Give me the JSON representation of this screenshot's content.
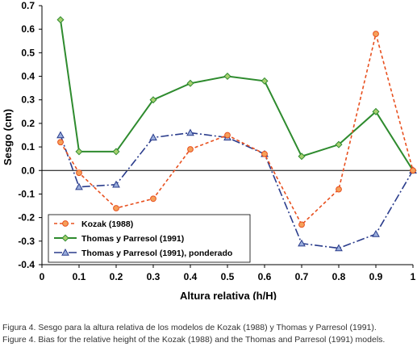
{
  "chart_data": {
    "type": "line",
    "title": "",
    "xlabel": "Altura relativa (h/H)",
    "ylabel": "Sesgo (cm)",
    "xlim": [
      0,
      1
    ],
    "ylim": [
      -0.4,
      0.7
    ],
    "xticks": [
      "0",
      "0.1",
      "0.2",
      "0.3",
      "0.4",
      "0.5",
      "0.6",
      "0.7",
      "0.8",
      "0.9",
      "1"
    ],
    "yticks": [
      "0.7",
      "0.6",
      "0.5",
      "0.4",
      "0.3",
      "0.2",
      "0.1",
      "0.0",
      "-0.1",
      "-0.2",
      "-0.3",
      "-0.4"
    ],
    "grid": false,
    "legend_position": "bottom-left",
    "x": [
      0.05,
      0.1,
      0.2,
      0.3,
      0.4,
      0.5,
      0.6,
      0.7,
      0.8,
      0.9,
      1.0
    ],
    "series": [
      {
        "name": "Kozak (1988)",
        "color": "#e8501f",
        "marker_color": "#f5a05a",
        "line_style": "dashed",
        "marker": "circle",
        "values": [
          0.12,
          -0.01,
          -0.16,
          -0.12,
          0.09,
          0.15,
          0.07,
          -0.23,
          -0.08,
          0.58,
          0.0
        ]
      },
      {
        "name": "Thomas y Parresol (1991)",
        "color": "#2e8b2e",
        "marker_color": "#a8d070",
        "line_style": "solid",
        "marker": "diamond",
        "values": [
          0.64,
          0.08,
          0.08,
          0.3,
          0.37,
          0.4,
          0.38,
          0.06,
          0.11,
          0.25,
          0.0
        ]
      },
      {
        "name": "Thomas y Parresol (1991), ponderado",
        "color": "#2a3c8c",
        "marker_color": "#9aaedc",
        "line_style": "dashdot",
        "marker": "triangle",
        "values": [
          0.15,
          -0.07,
          -0.06,
          0.14,
          0.16,
          0.14,
          0.07,
          -0.31,
          -0.33,
          -0.27,
          0.0
        ]
      }
    ]
  },
  "caption": {
    "line1": "Figura 4. Sesgo para la altura relativa de los modelos de Kozak (1988) y Thomas y Parresol (1991).",
    "line2": "Figure 4. Bias for the relative height of the Kozak (1988) and the Thomas and Parresol (1991) models."
  }
}
